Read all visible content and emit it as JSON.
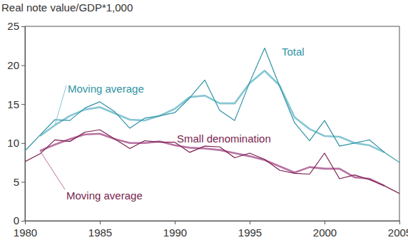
{
  "chart_data": {
    "type": "line",
    "y_label": "Real note value/GDP*1,000",
    "x": [
      1980,
      1981,
      1982,
      1983,
      1984,
      1985,
      1986,
      1987,
      1988,
      1989,
      1990,
      1991,
      1992,
      1993,
      1994,
      1995,
      1996,
      1997,
      1998,
      1999,
      2000,
      2001,
      2002,
      2003,
      2004,
      2005
    ],
    "xlim": [
      1980,
      2005
    ],
    "xticks": [
      1980,
      1985,
      1990,
      1995,
      2000,
      2005
    ],
    "ylim": [
      0,
      25
    ],
    "yticks": [
      0,
      5,
      10,
      15,
      20,
      25
    ],
    "grid": false,
    "series": [
      {
        "name": "Total",
        "color": "#2f93a5",
        "line_style": "thin",
        "values": [
          9.0,
          11.0,
          13.0,
          12.9,
          14.5,
          15.3,
          14.0,
          11.9,
          13.2,
          13.5,
          13.9,
          15.8,
          18.1,
          14.2,
          12.9,
          17.8,
          22.2,
          17.3,
          12.6,
          10.3,
          12.9,
          9.6,
          10.0,
          10.4,
          8.8,
          7.5
        ]
      },
      {
        "name": "Moving average",
        "color": "#86c6d3",
        "line_style": "thick",
        "values": [
          null,
          10.9,
          12.3,
          13.5,
          14.3,
          14.6,
          13.8,
          13.0,
          12.9,
          13.5,
          14.4,
          15.9,
          16.1,
          15.1,
          15.1,
          17.7,
          19.3,
          17.4,
          13.3,
          11.8,
          10.9,
          10.8,
          10.0,
          9.7,
          8.8,
          null
        ]
      },
      {
        "name": "Small denomination",
        "color": "#7a1f4f",
        "line_style": "thin",
        "values": [
          7.6,
          8.6,
          10.4,
          10.2,
          11.4,
          11.7,
          10.5,
          9.3,
          10.3,
          10.1,
          10.1,
          8.8,
          9.6,
          9.5,
          8.1,
          8.7,
          7.9,
          6.5,
          6.1,
          6.0,
          8.7,
          5.4,
          5.9,
          5.3,
          4.5,
          3.5
        ]
      },
      {
        "name": "Moving average",
        "color": "#b872a2",
        "line_style": "thick",
        "values": [
          null,
          9.0,
          9.8,
          10.5,
          11.1,
          11.2,
          10.5,
          10.0,
          10.0,
          10.2,
          9.7,
          9.4,
          9.3,
          9.1,
          8.7,
          8.3,
          7.8,
          7.0,
          6.2,
          6.9,
          6.7,
          6.7,
          5.6,
          5.4,
          4.5,
          null
        ]
      }
    ]
  }
}
